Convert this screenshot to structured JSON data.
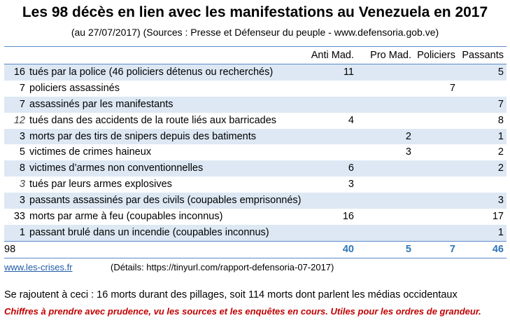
{
  "title": "Les 98 décès en lien avec les manifestations au Venezuela en 2017",
  "subtitle": "(au 27/07/2017) (Sources : Presse et Défenseur du peuple - www.defensoria.gob.ve)",
  "table": {
    "headers": [
      "Anti Mad.",
      "Pro Mad.",
      "Policiers",
      "Passants"
    ],
    "rows": [
      {
        "total": "16",
        "label": "tués par la police (46 policiers détenus ou recherchés)",
        "anti": "11",
        "pro": "",
        "pol": "",
        "pass": "5"
      },
      {
        "total": "7",
        "label": "policiers assassinés",
        "anti": "",
        "pro": "",
        "pol": "7",
        "pass": ""
      },
      {
        "total": "7",
        "label": "assassinés par les manifestants",
        "anti": "",
        "pro": "",
        "pol": "",
        "pass": "7"
      },
      {
        "total": "12",
        "label": "tués dans des accidents de la route liés aux barricades",
        "anti": "4",
        "pro": "",
        "pol": "",
        "pass": "8"
      },
      {
        "total": "3",
        "label": "morts par des tirs de snipers depuis des batiments",
        "anti": "",
        "pro": "2",
        "pol": "",
        "pass": "1"
      },
      {
        "total": "5",
        "label": "victimes de crimes haineux",
        "anti": "",
        "pro": "3",
        "pol": "",
        "pass": "2"
      },
      {
        "total": "8",
        "label": "victimes d’armes non conventionnelles",
        "anti": "6",
        "pro": "",
        "pol": "",
        "pass": "2"
      },
      {
        "total": "3",
        "label": "tués par leurs armes explosives",
        "anti": "3",
        "pro": "",
        "pol": "",
        "pass": ""
      },
      {
        "total": "3",
        "label": "passants assassinés par des civils (coupables emprisonnés)",
        "anti": "",
        "pro": "",
        "pol": "",
        "pass": "3"
      },
      {
        "total": "33",
        "label": "morts par arme à feu (coupables inconnus)",
        "anti": "16",
        "pro": "",
        "pol": "",
        "pass": "17"
      },
      {
        "total": "1",
        "label": "passant brulé dans un incendie (coupables inconnus)",
        "anti": "",
        "pro": "",
        "pol": "",
        "pass": "1"
      }
    ],
    "totals": {
      "total": "98",
      "anti": "40",
      "pro": "5",
      "pol": "7",
      "pass": "46"
    }
  },
  "footer": {
    "link": "www.les-crises.fr",
    "details": "(Détails: https://tinyurl.com/rapport-defensoria-07-2017)"
  },
  "notes": {
    "line1": "Se rajoutent à ceci : 16 morts durant des pillages, soit 114 morts dont parlent les médias occidentaux",
    "line2": "Chiffres à prendre avec prudence, vu les sources et les enquêtes en cours. Utiles pour les ordres de grandeur."
  },
  "colors": {
    "rule": "#5b8ac7",
    "shade": "#dde8f4",
    "totals": "#2e75b6",
    "link": "#1f5aa8",
    "warning": "#c00000"
  }
}
